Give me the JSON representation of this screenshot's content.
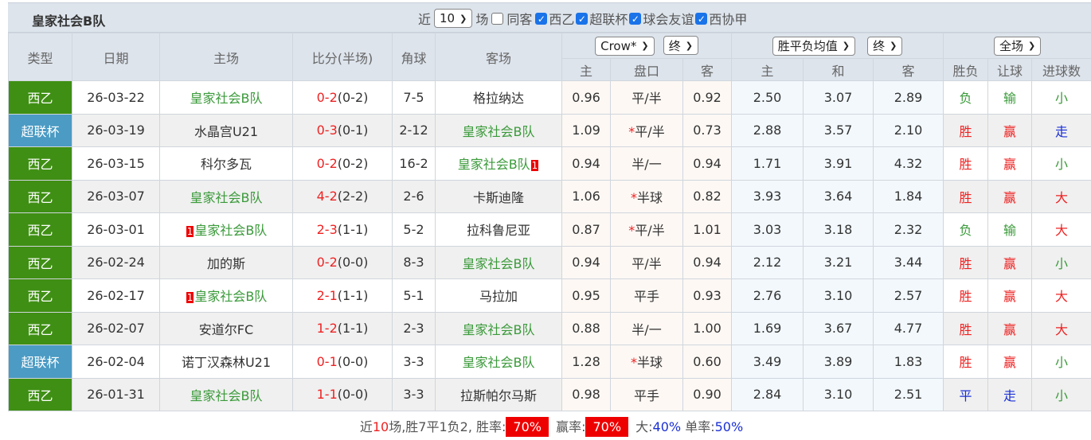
{
  "header": {
    "title": "皇家社会B队",
    "recent_label": "近",
    "recent_value": "10",
    "games_label": "场",
    "same_guest": "同客",
    "leagues": [
      "西乙",
      "超联杯",
      "球会友谊",
      "西协甲"
    ]
  },
  "columns": {
    "type": "类型",
    "date": "日期",
    "home": "主场",
    "score": "比分(半场)",
    "corner": "角球",
    "away": "客场",
    "company": "Crow*",
    "handicap_state": "终",
    "avg": "胜平负均值",
    "avg_state": "终",
    "scope": "全场",
    "h_home": "主",
    "h_line": "盘口",
    "h_away": "客",
    "o_home": "主",
    "o_draw": "和",
    "o_away": "客",
    "res": "胜负",
    "ah": "让球",
    "ou": "进球数"
  },
  "colors": {
    "西乙": "#3f8f14",
    "超联杯": "#4b9bc4"
  },
  "rows": [
    {
      "type": "西乙",
      "date": "26-03-22",
      "home": "皇家社会B队",
      "home_rc": "",
      "home_team": true,
      "score": "0-2",
      "half": "(0-2)",
      "corner": "7-5",
      "away": "格拉纳达",
      "away_rc": "",
      "away_team": false,
      "hh": "0.96",
      "line": "平/半",
      "star": false,
      "ha": "0.92",
      "oh": "2.50",
      "od": "3.07",
      "oa": "2.89",
      "res": "负",
      "ah": "输",
      "ou": "小"
    },
    {
      "type": "超联杯",
      "date": "26-03-19",
      "home": "水晶宫U21",
      "home_rc": "",
      "home_team": false,
      "score": "0-3",
      "half": "(0-1)",
      "corner": "2-12",
      "away": "皇家社会B队",
      "away_rc": "",
      "away_team": true,
      "hh": "1.09",
      "line": "平/半",
      "star": true,
      "ha": "0.73",
      "oh": "2.88",
      "od": "3.57",
      "oa": "2.10",
      "res": "胜",
      "ah": "赢",
      "ou": "走"
    },
    {
      "type": "西乙",
      "date": "26-03-15",
      "home": "科尔多瓦",
      "home_rc": "",
      "home_team": false,
      "score": "0-2",
      "half": "(0-2)",
      "corner": "16-2",
      "away": "皇家社会B队",
      "away_rc": "1",
      "away_team": true,
      "hh": "0.94",
      "line": "半/一",
      "star": false,
      "ha": "0.94",
      "oh": "1.71",
      "od": "3.91",
      "oa": "4.32",
      "res": "胜",
      "ah": "赢",
      "ou": "小"
    },
    {
      "type": "西乙",
      "date": "26-03-07",
      "home": "皇家社会B队",
      "home_rc": "",
      "home_team": true,
      "score": "4-2",
      "half": "(2-2)",
      "corner": "2-6",
      "away": "卡斯迪隆",
      "away_rc": "",
      "away_team": false,
      "hh": "1.06",
      "line": "半球",
      "star": true,
      "ha": "0.82",
      "oh": "3.93",
      "od": "3.64",
      "oa": "1.84",
      "res": "胜",
      "ah": "赢",
      "ou": "大"
    },
    {
      "type": "西乙",
      "date": "26-03-01",
      "home": "皇家社会B队",
      "home_rc": "1",
      "home_team": true,
      "score": "2-3",
      "half": "(1-1)",
      "corner": "5-2",
      "away": "拉科鲁尼亚",
      "away_rc": "",
      "away_team": false,
      "hh": "0.87",
      "line": "平/半",
      "star": true,
      "ha": "1.01",
      "oh": "3.03",
      "od": "3.18",
      "oa": "2.32",
      "res": "负",
      "ah": "输",
      "ou": "大"
    },
    {
      "type": "西乙",
      "date": "26-02-24",
      "home": "加的斯",
      "home_rc": "",
      "home_team": false,
      "score": "0-2",
      "half": "(0-0)",
      "corner": "8-3",
      "away": "皇家社会B队",
      "away_rc": "",
      "away_team": true,
      "hh": "0.94",
      "line": "平/半",
      "star": false,
      "ha": "0.94",
      "oh": "2.12",
      "od": "3.21",
      "oa": "3.44",
      "res": "胜",
      "ah": "赢",
      "ou": "小"
    },
    {
      "type": "西乙",
      "date": "26-02-17",
      "home": "皇家社会B队",
      "home_rc": "1",
      "home_team": true,
      "score": "2-1",
      "half": "(1-1)",
      "corner": "5-1",
      "away": "马拉加",
      "away_rc": "",
      "away_team": false,
      "hh": "0.95",
      "line": "平手",
      "star": false,
      "ha": "0.93",
      "oh": "2.76",
      "od": "3.10",
      "oa": "2.57",
      "res": "胜",
      "ah": "赢",
      "ou": "大"
    },
    {
      "type": "西乙",
      "date": "26-02-07",
      "home": "安道尔FC",
      "home_rc": "",
      "home_team": false,
      "score": "1-2",
      "half": "(1-1)",
      "corner": "2-3",
      "away": "皇家社会B队",
      "away_rc": "",
      "away_team": true,
      "hh": "0.88",
      "line": "半/一",
      "star": false,
      "ha": "1.00",
      "oh": "1.69",
      "od": "3.67",
      "oa": "4.77",
      "res": "胜",
      "ah": "赢",
      "ou": "大"
    },
    {
      "type": "超联杯",
      "date": "26-02-04",
      "home": "诺丁汉森林U21",
      "home_rc": "",
      "home_team": false,
      "score": "0-1",
      "half": "(0-0)",
      "corner": "3-3",
      "away": "皇家社会B队",
      "away_rc": "",
      "away_team": true,
      "hh": "1.28",
      "line": "半球",
      "star": true,
      "ha": "0.60",
      "oh": "3.49",
      "od": "3.89",
      "oa": "1.83",
      "res": "胜",
      "ah": "赢",
      "ou": "小"
    },
    {
      "type": "西乙",
      "date": "26-01-31",
      "home": "皇家社会B队",
      "home_rc": "",
      "home_team": true,
      "score": "1-1",
      "half": "(0-0)",
      "corner": "3-3",
      "away": "拉斯帕尔马斯",
      "away_rc": "",
      "away_team": false,
      "hh": "0.98",
      "line": "平手",
      "star": false,
      "ha": "0.90",
      "oh": "2.84",
      "od": "3.10",
      "oa": "2.51",
      "res": "平",
      "ah": "走",
      "ou": "小"
    }
  ],
  "footer": {
    "p1": "近",
    "n": "10",
    "p2": "场,胜7平1负2, 胜率:",
    "win_rate": "70%",
    "p3": "赢率:",
    "ah_rate": "70%",
    "p4": "大:",
    "over": "40%",
    "p5": "单率:",
    "odd": "50%"
  }
}
